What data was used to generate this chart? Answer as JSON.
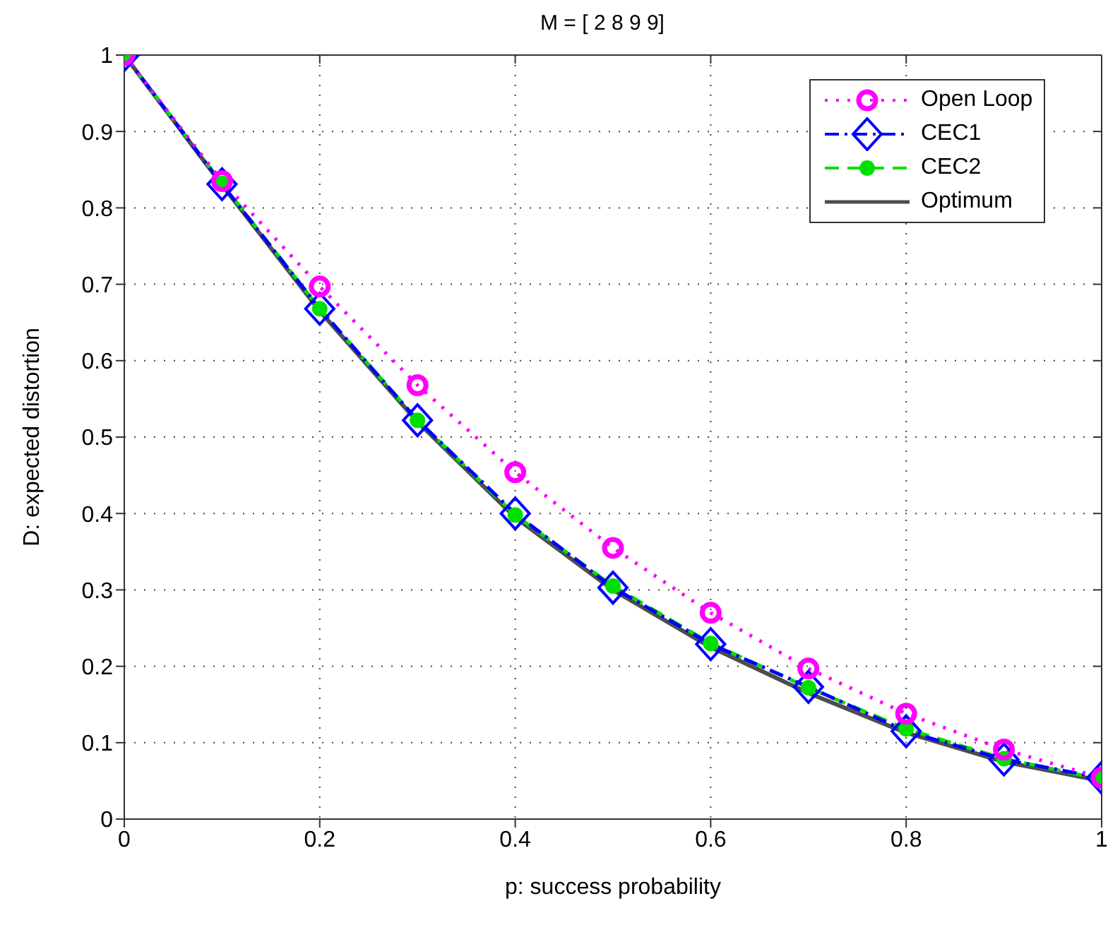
{
  "chart_data": {
    "type": "line",
    "title": "M = [ 2  8  9  9]",
    "xlabel": "p: success probability",
    "ylabel": "D: expected distortion",
    "x": [
      0,
      0.1,
      0.2,
      0.3,
      0.4,
      0.5,
      0.6,
      0.7,
      0.8,
      0.9,
      1
    ],
    "series": [
      {
        "name": "Open Loop",
        "color": "#ff00ff",
        "marker": "circle",
        "line_style": "dotted",
        "values": [
          1,
          0.835,
          0.697,
          0.568,
          0.454,
          0.355,
          0.27,
          0.197,
          0.138,
          0.091,
          0.054
        ]
      },
      {
        "name": "CEC1",
        "color": "#0000ff",
        "marker": "diamond",
        "line_style": "dashdot",
        "values": [
          1,
          0.831,
          0.668,
          0.522,
          0.4,
          0.303,
          0.229,
          0.173,
          0.115,
          0.078,
          0.054
        ]
      },
      {
        "name": "CEC2",
        "color": "#00e000",
        "marker": "circle",
        "line_style": "dashed",
        "values": [
          1,
          0.832,
          0.668,
          0.522,
          0.398,
          0.305,
          0.23,
          0.172,
          0.118,
          0.079,
          0.052
        ]
      },
      {
        "name": "Optimum",
        "color": "#4d4d4d",
        "marker": "none",
        "line_style": "solid",
        "values": [
          1,
          0.83,
          0.665,
          0.52,
          0.395,
          0.3,
          0.225,
          0.165,
          0.113,
          0.075,
          0.05
        ]
      }
    ],
    "xlim": [
      0,
      1
    ],
    "xticks": [
      0,
      0.2,
      0.4,
      0.6,
      0.8,
      1
    ],
    "ylim": [
      0,
      1
    ],
    "yticks": [
      0,
      0.1,
      0.2,
      0.3,
      0.4,
      0.5,
      0.6,
      0.7,
      0.8,
      0.9,
      1
    ],
    "grid": true,
    "legend": "top right"
  }
}
